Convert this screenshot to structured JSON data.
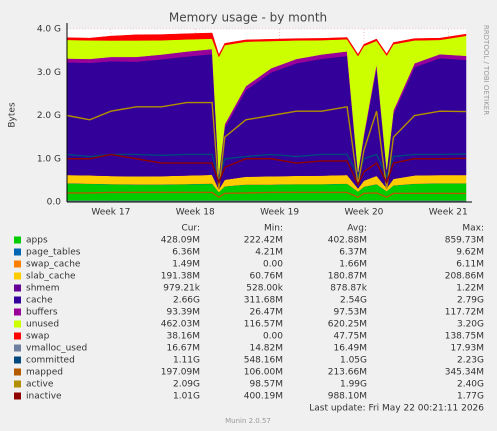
{
  "chart_data": {
    "type": "area",
    "title": "Memory usage - by month",
    "y_label": "Bytes",
    "side_text": "RRDTOOL / TOBI OETIKER",
    "footer": "Last update: Fri May 22 00:21:11 2026",
    "version": "Munin 2.0.57",
    "legend_headers": [
      "Cur:",
      "Min:",
      "Avg:",
      "Max:"
    ],
    "grid": true,
    "xlim": [
      16.48,
      21.21
    ],
    "xticks": [
      {
        "value": 17,
        "label": "Week 17"
      },
      {
        "value": 18,
        "label": "Week 18"
      },
      {
        "value": 19,
        "label": "Week 19"
      },
      {
        "value": 20,
        "label": "Week 20"
      },
      {
        "value": 21,
        "label": "Week 21"
      }
    ],
    "ylim": [
      0,
      4000000000.0
    ],
    "yticks": [
      {
        "value": 0,
        "label": "0.0"
      },
      {
        "value": 1000000000.0,
        "label": "1.0 G"
      },
      {
        "value": 2000000000.0,
        "label": "2.0 G"
      },
      {
        "value": 3000000000.0,
        "label": "3.0 G"
      },
      {
        "value": 4000000000.0,
        "label": "4.0 G"
      }
    ],
    "x": [
      16.48,
      16.75,
      17.0,
      17.3,
      17.6,
      17.9,
      18.2,
      18.28,
      18.35,
      18.6,
      18.9,
      19.2,
      19.5,
      19.8,
      19.93,
      20.0,
      20.15,
      20.27,
      20.35,
      20.6,
      20.9,
      21.21
    ],
    "series": [
      {
        "name": "apps",
        "color": "#00cc00",
        "style": "stack",
        "stats": [
          "428.09M",
          "222.42M",
          "402.88M",
          "859.73M"
        ],
        "values": [
          430000000.0,
          420000000.0,
          410000000.0,
          400000000.0,
          400000000.0,
          410000000.0,
          420000000.0,
          230000000.0,
          360000000.0,
          400000000.0,
          400000000.0,
          410000000.0,
          410000000.0,
          420000000.0,
          240000000.0,
          350000000.0,
          410000000.0,
          250000000.0,
          380000000.0,
          420000000.0,
          430000000.0,
          428000000.0
        ]
      },
      {
        "name": "page_tables",
        "color": "#0066b3",
        "style": "stack",
        "stats": [
          "6.36M",
          "4.21M",
          "6.37M",
          "9.62M"
        ],
        "values": [
          6000000.0,
          6000000.0,
          6000000.0,
          6000000.0,
          6000000.0,
          6000000.0,
          7000000.0,
          4000000.0,
          6000000.0,
          6000000.0,
          6000000.0,
          6000000.0,
          6000000.0,
          7000000.0,
          4000000.0,
          6000000.0,
          6000000.0,
          4000000.0,
          6000000.0,
          6000000.0,
          6000000.0,
          6360000.0
        ]
      },
      {
        "name": "swap_cache",
        "color": "#ff8000",
        "style": "stack",
        "stats": [
          "1.49M",
          "0.00",
          "1.66M",
          "6.11M"
        ],
        "values": [
          2000000.0,
          2000000.0,
          3000000.0,
          4000000.0,
          4000000.0,
          4000000.0,
          4000000.0,
          0,
          1000000.0,
          1000000.0,
          1000000.0,
          1000000.0,
          1000000.0,
          1000000.0,
          0,
          1000000.0,
          1000000.0,
          0,
          1000000.0,
          1000000.0,
          1000000.0,
          1490000.0
        ]
      },
      {
        "name": "slab_cache",
        "color": "#ffcc00",
        "style": "stack",
        "stats": [
          "191.38M",
          "60.76M",
          "180.87M",
          "208.86M"
        ],
        "values": [
          190000000.0,
          190000000.0,
          185000000.0,
          185000000.0,
          190000000.0,
          195000000.0,
          200000000.0,
          61000000.0,
          150000000.0,
          180000000.0,
          190000000.0,
          190000000.0,
          195000000.0,
          200000000.0,
          70000000.0,
          140000000.0,
          190000000.0,
          70000000.0,
          150000000.0,
          190000000.0,
          190000000.0,
          191000000.0
        ]
      },
      {
        "name": "shmem",
        "color": "#660099",
        "style": "stack",
        "stats": [
          "979.21k",
          "528.00k",
          "878.87k",
          "1.22M"
        ],
        "values": [
          900000.0,
          900000.0,
          900000.0,
          900000.0,
          900000.0,
          900000.0,
          900000.0,
          500000.0,
          800000.0,
          900000.0,
          900000.0,
          900000.0,
          900000.0,
          900000.0,
          500000.0,
          800000.0,
          900000.0,
          500000.0,
          800000.0,
          900000.0,
          900000.0,
          980000.0
        ]
      },
      {
        "name": "cache",
        "color": "#330099",
        "style": "stack",
        "stats": [
          "2.66G",
          "311.68M",
          "2.54G",
          "2.79G"
        ],
        "values": [
          2600000000.0,
          2600000000.0,
          2650000000.0,
          2650000000.0,
          2700000000.0,
          2750000000.0,
          2790000000.0,
          320000000.0,
          1200000000.0,
          2000000000.0,
          2400000000.0,
          2600000000.0,
          2700000000.0,
          2750000000.0,
          350000000.0,
          1000000000.0,
          2500000000.0,
          400000000.0,
          1500000000.0,
          2500000000.0,
          2700000000.0,
          2660000000.0
        ]
      },
      {
        "name": "buffers",
        "color": "#990099",
        "style": "stack",
        "stats": [
          "93.39M",
          "26.47M",
          "97.53M",
          "117.72M"
        ],
        "values": [
          90000000.0,
          90000000.0,
          100000000.0,
          110000000.0,
          110000000.0,
          115000000.0,
          115000000.0,
          30000000.0,
          80000000.0,
          90000000.0,
          95000000.0,
          100000000.0,
          100000000.0,
          105000000.0,
          30000000.0,
          80000000.0,
          90000000.0,
          30000000.0,
          80000000.0,
          90000000.0,
          90000000.0,
          93000000.0
        ]
      },
      {
        "name": "unused",
        "color": "#ccff00",
        "style": "stack",
        "stats": [
          "462.03M",
          "116.57M",
          "620.25M",
          "3.20G"
        ],
        "values": [
          430000000.0,
          430000000.0,
          380000000.0,
          380000000.0,
          330000000.0,
          280000000.0,
          240000000.0,
          2710000000.0,
          1830000000.0,
          1030000000.0,
          630000000.0,
          430000000.0,
          330000000.0,
          280000000.0,
          2680000000.0,
          2030000000.0,
          530000000.0,
          2630000000.0,
          1530000000.0,
          530000000.0,
          330000000.0,
          462000000.0
        ]
      },
      {
        "name": "swap",
        "color": "#ff0000",
        "style": "stack",
        "stats": [
          "38.16M",
          "0.00",
          "47.75M",
          "138.75M"
        ],
        "values": [
          50000000.0,
          50000000.0,
          100000000.0,
          130000000.0,
          130000000.0,
          130000000.0,
          130000000.0,
          50000000.0,
          40000000.0,
          40000000.0,
          40000000.0,
          40000000.0,
          40000000.0,
          40000000.0,
          40000000.0,
          40000000.0,
          40000000.0,
          40000000.0,
          40000000.0,
          40000000.0,
          40000000.0,
          38000000.0
        ]
      },
      {
        "name": "vmalloc_used",
        "color": "#6f7f9f",
        "style": "line",
        "stats": [
          "16.67M",
          "14.82M",
          "16.49M",
          "17.93M"
        ],
        "values": [
          16000000.0,
          16000000.0,
          16000000.0,
          17000000.0,
          17000000.0,
          17000000.0,
          17000000.0,
          15000000.0,
          16000000.0,
          16000000.0,
          16000000.0,
          16000000.0,
          17000000.0,
          17000000.0,
          15000000.0,
          16000000.0,
          16000000.0,
          15000000.0,
          16000000.0,
          17000000.0,
          17000000.0,
          16670000.0
        ]
      },
      {
        "name": "committed",
        "color": "#00487d",
        "style": "line",
        "stats": [
          "1.11G",
          "548.16M",
          "1.05G",
          "2.23G"
        ],
        "values": [
          1100000000.0,
          1050000000.0,
          1100000000.0,
          1100000000.0,
          1080000000.0,
          1100000000.0,
          1100000000.0,
          550000000.0,
          1000000000.0,
          1050000000.0,
          1100000000.0,
          1050000000.0,
          1100000000.0,
          1100000000.0,
          600000000.0,
          1000000000.0,
          1100000000.0,
          600000000.0,
          1050000000.0,
          1100000000.0,
          1100000000.0,
          1110000000.0
        ]
      },
      {
        "name": "mapped",
        "color": "#b35a00",
        "style": "line",
        "stats": [
          "197.09M",
          "106.00M",
          "213.66M",
          "345.34M"
        ],
        "values": [
          210000000.0,
          210000000.0,
          220000000.0,
          220000000.0,
          220000000.0,
          220000000.0,
          220000000.0,
          110000000.0,
          200000000.0,
          210000000.0,
          220000000.0,
          220000000.0,
          220000000.0,
          220000000.0,
          110000000.0,
          200000000.0,
          210000000.0,
          110000000.0,
          200000000.0,
          200000000.0,
          200000000.0,
          197000000.0
        ]
      },
      {
        "name": "active",
        "color": "#b38f00",
        "style": "line",
        "stats": [
          "2.09G",
          "98.57M",
          "1.99G",
          "2.40G"
        ],
        "values": [
          2000000000.0,
          1900000000.0,
          2100000000.0,
          2200000000.0,
          2200000000.0,
          2300000000.0,
          2300000000.0,
          300000000.0,
          1500000000.0,
          1900000000.0,
          2000000000.0,
          2100000000.0,
          2100000000.0,
          2200000000.0,
          400000000.0,
          1200000000.0,
          2100000000.0,
          300000000.0,
          1500000000.0,
          2000000000.0,
          2100000000.0,
          2090000000.0
        ]
      },
      {
        "name": "inactive",
        "color": "#8f0000",
        "style": "line",
        "stats": [
          "1.01G",
          "400.19M",
          "988.10M",
          "1.77G"
        ],
        "values": [
          1000000000.0,
          1000000000.0,
          1100000000.0,
          1000000000.0,
          900000000.0,
          900000000.0,
          900000000.0,
          450000000.0,
          800000000.0,
          1000000000.0,
          1000000000.0,
          900000000.0,
          950000000.0,
          950000000.0,
          400000000.0,
          700000000.0,
          900000000.0,
          450000000.0,
          900000000.0,
          1000000000.0,
          1000000000.0,
          1010000000.0
        ]
      }
    ]
  }
}
